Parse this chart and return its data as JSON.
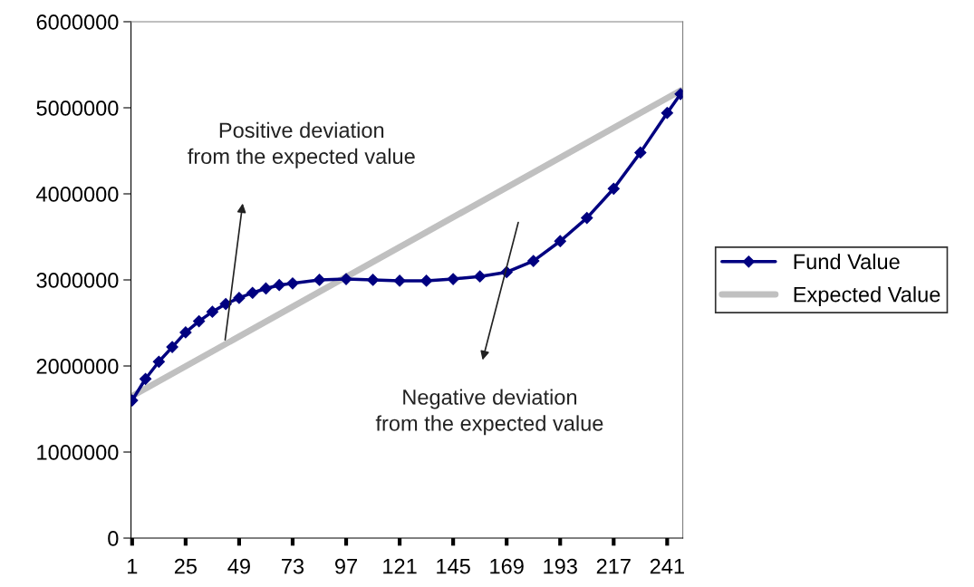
{
  "chart_data": {
    "type": "line",
    "x": [
      1,
      7,
      13,
      19,
      25,
      31,
      37,
      43,
      49,
      55,
      61,
      67,
      73,
      85,
      97,
      109,
      121,
      133,
      145,
      157,
      169,
      181,
      193,
      205,
      217,
      229,
      241,
      247
    ],
    "series": [
      {
        "name": "Fund Value",
        "color": "#000080",
        "marker": "diamond",
        "values": [
          1600000,
          1850000,
          2050000,
          2220000,
          2390000,
          2520000,
          2630000,
          2720000,
          2790000,
          2850000,
          2900000,
          2940000,
          2960000,
          3000000,
          3010000,
          3000000,
          2990000,
          2990000,
          3010000,
          3040000,
          3090000,
          3220000,
          3450000,
          3720000,
          4060000,
          4480000,
          4940000,
          5160000
        ]
      },
      {
        "name": "Expected Value",
        "color": "#c0c0c0",
        "marker": "none",
        "x": [
          1,
          247
        ],
        "values": [
          1650000,
          5200000
        ]
      }
    ],
    "xlim": [
      0.5,
      248
    ],
    "xticks": [
      1,
      25,
      49,
      73,
      97,
      121,
      145,
      169,
      193,
      217,
      241
    ],
    "ylim": [
      0,
      6000000
    ],
    "yticks": [
      0,
      1000000,
      2000000,
      3000000,
      4000000,
      5000000,
      6000000
    ],
    "annotations": [
      "Positive deviation\nfrom the expected value",
      "Negative deviation\nfrom the expected value"
    ],
    "grid": false,
    "legend": "right",
    "line_style": "solid"
  }
}
